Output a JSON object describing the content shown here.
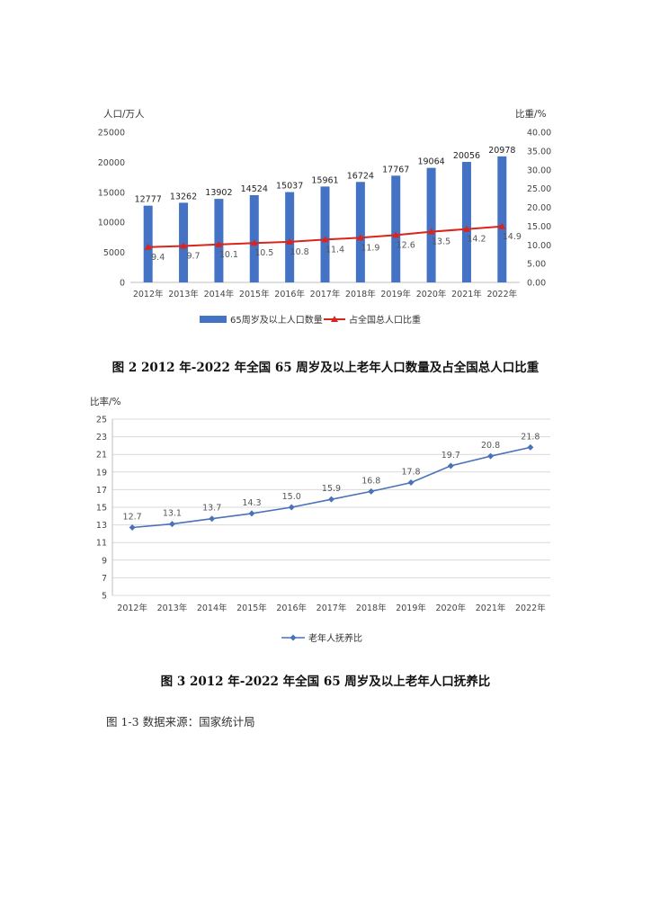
{
  "figure2": {
    "caption": "图 2   2012 年-2022 年全国 65 周岁及以上老年人口数量及占全国总人口比重",
    "chart_data": {
      "type": "bar",
      "categories": [
        "2012年",
        "2013年",
        "2014年",
        "2015年",
        "2016年",
        "2017年",
        "2018年",
        "2019年",
        "2020年",
        "2021年",
        "2022年"
      ],
      "ylabel_left": "人口/万人",
      "ylabel_right": "比重/%",
      "ylim_left": [
        0,
        25000
      ],
      "yticks_left": [
        "0",
        "5000",
        "10000",
        "15000",
        "20000",
        "25000"
      ],
      "ylim_right": [
        0,
        40
      ],
      "yticks_right": [
        "0.00",
        "5.00",
        "10.00",
        "15.00",
        "20.00",
        "25.00",
        "30.00",
        "35.00",
        "40.00"
      ],
      "series": [
        {
          "name": "65周岁及以上人口数量",
          "kind": "bar",
          "color": "#4472c4",
          "values": [
            12777,
            13262,
            13902,
            14524,
            15037,
            15961,
            16724,
            17767,
            19064,
            20056,
            20978
          ],
          "labels": [
            "12777",
            "13262",
            "13902",
            "14524",
            "15037",
            "15961",
            "16724",
            "17767",
            "19064",
            "20056",
            "20978"
          ]
        },
        {
          "name": "占全国总人口比重",
          "kind": "line",
          "axis": "right",
          "color": "#d9251c",
          "values": [
            9.4,
            9.7,
            10.1,
            10.5,
            10.8,
            11.4,
            11.9,
            12.6,
            13.5,
            14.2,
            14.9
          ],
          "labels": [
            "9.4",
            "9.7",
            "10.1",
            "10.5",
            "10.8",
            "11.4",
            "11.9",
            "12.6",
            "13.5",
            "14.2",
            "14.9"
          ]
        }
      ],
      "legend_position": "bottom",
      "grid": false
    }
  },
  "figure3": {
    "caption": "图 3   2012 年-2022 年全国 65 周岁及以上老年人口抚养比",
    "chart_data": {
      "type": "line",
      "categories": [
        "2012年",
        "2013年",
        "2014年",
        "2015年",
        "2016年",
        "2017年",
        "2018年",
        "2019年",
        "2020年",
        "2021年",
        "2022年"
      ],
      "ylabel": "比率/%",
      "ylim": [
        5,
        25
      ],
      "yticks": [
        "5",
        "7",
        "9",
        "11",
        "13",
        "15",
        "17",
        "19",
        "21",
        "23",
        "25"
      ],
      "series": [
        {
          "name": "老年人抚养比",
          "color": "#4a72b8",
          "values": [
            12.7,
            13.1,
            13.7,
            14.3,
            15.0,
            15.9,
            16.8,
            17.8,
            19.7,
            20.8,
            21.8
          ],
          "labels": [
            "12.7",
            "13.1",
            "13.7",
            "14.3",
            "15.0",
            "15.9",
            "16.8",
            "17.8",
            "19.7",
            "20.8",
            "21.8"
          ]
        }
      ],
      "legend_position": "bottom",
      "grid": true
    }
  },
  "source_note": "图 1-3 数据来源：国家统计局"
}
